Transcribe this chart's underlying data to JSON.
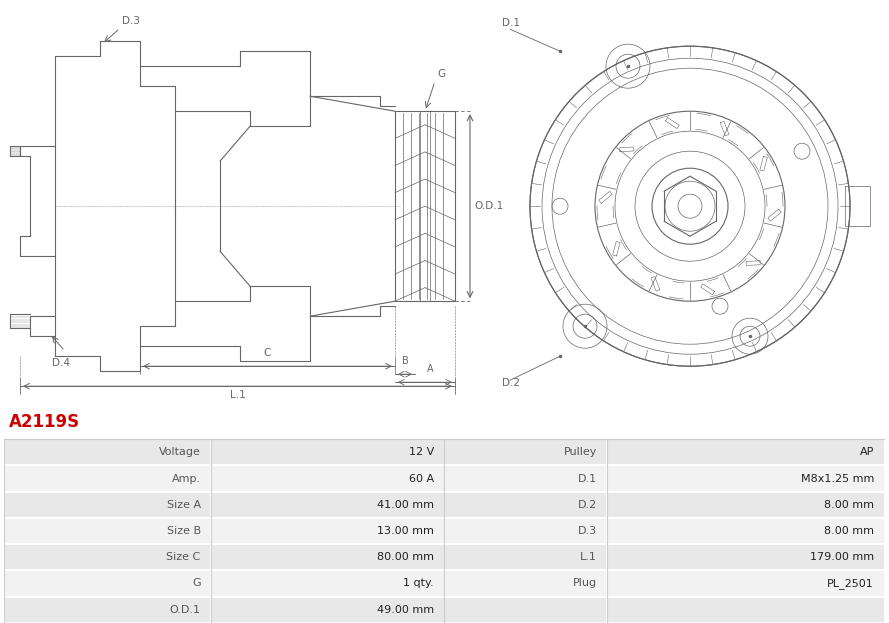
{
  "title": "A2119S",
  "title_color": "#cc0000",
  "bg_color": "#ffffff",
  "table_row_bg1": "#e8e8e8",
  "table_row_bg2": "#f5f5f5",
  "rows": [
    [
      "Voltage",
      "12 V",
      "Pulley",
      "AP"
    ],
    [
      "Amp.",
      "60 A",
      "D.1",
      "M8x1.25 mm"
    ],
    [
      "Size A",
      "41.00 mm",
      "D.2",
      "8.00 mm"
    ],
    [
      "Size B",
      "13.00 mm",
      "D.3",
      "8.00 mm"
    ],
    [
      "Size C",
      "80.00 mm",
      "L.1",
      "179.00 mm"
    ],
    [
      "G",
      "1 qty.",
      "Plug",
      "PL_2501"
    ],
    [
      "O.D.1",
      "49.00 mm",
      "",
      ""
    ]
  ],
  "col_starts": [
    0.0,
    0.235,
    0.5,
    0.685
  ],
  "col_ends": [
    0.235,
    0.5,
    0.685,
    1.0
  ],
  "line_color": "#aaaaaa",
  "text_label_color": "#555555",
  "text_value_color": "#333333",
  "draw_color": "#666666",
  "draw_lw": 0.8,
  "draw_lw_thin": 0.5
}
